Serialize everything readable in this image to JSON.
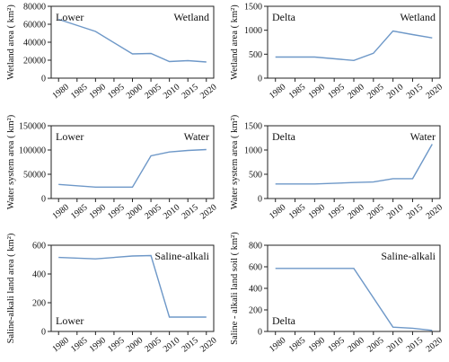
{
  "chart_data": [
    {
      "type": "line",
      "ylabel": "Wetland area ( km²)",
      "region_label": "Lower",
      "category_label": "Wetland",
      "x": [
        1980,
        1990,
        2000,
        2005,
        2010,
        2015,
        2020
      ],
      "y": [
        65500,
        52000,
        27000,
        27500,
        18500,
        19500,
        18000
      ],
      "xticks": [
        1980,
        1985,
        1990,
        1995,
        2000,
        2005,
        2010,
        2015,
        2020
      ],
      "yticks": [
        0,
        20000,
        40000,
        60000,
        80000
      ],
      "ylim": [
        0,
        80000
      ],
      "xlim": [
        1978,
        2022
      ]
    },
    {
      "type": "line",
      "ylabel": "Wetland area ( km²)",
      "region_label": "Delta",
      "category_label": "Wetland",
      "x": [
        1980,
        1990,
        2000,
        2005,
        2010,
        2015,
        2020
      ],
      "y": [
        440,
        440,
        370,
        520,
        985,
        910,
        840
      ],
      "xticks": [
        1980,
        1985,
        1990,
        1995,
        2000,
        2005,
        2010,
        2015,
        2020
      ],
      "yticks": [
        0,
        500,
        1000,
        1500
      ],
      "ylim": [
        0,
        1500
      ],
      "xlim": [
        1978,
        2022
      ]
    },
    {
      "type": "line",
      "ylabel": "Water system area ( km²)",
      "region_label": "Lower",
      "category_label": "Water",
      "x": [
        1980,
        1990,
        2000,
        2005,
        2010,
        2015,
        2020
      ],
      "y": [
        29000,
        23500,
        23500,
        88000,
        96000,
        99000,
        101000
      ],
      "xticks": [
        1980,
        1985,
        1990,
        1995,
        2000,
        2005,
        2010,
        2015,
        2020
      ],
      "yticks": [
        0,
        50000,
        100000,
        150000
      ],
      "ylim": [
        0,
        150000
      ],
      "xlim": [
        1978,
        2022
      ]
    },
    {
      "type": "line",
      "ylabel": "Water system area ( km²)",
      "region_label": "Delta",
      "category_label": "Water",
      "x": [
        1980,
        1990,
        2000,
        2005,
        2010,
        2015,
        2020
      ],
      "y": [
        300,
        300,
        330,
        340,
        410,
        410,
        1120
      ],
      "xticks": [
        1980,
        1985,
        1990,
        1995,
        2000,
        2005,
        2010,
        2015,
        2020
      ],
      "yticks": [
        0,
        500,
        1000,
        1500
      ],
      "ylim": [
        0,
        1500
      ],
      "xlim": [
        1978,
        2022
      ]
    },
    {
      "type": "line",
      "ylabel": "Saline-alkali land area ( km²)",
      "region_label": "Lower",
      "category_label": "Saline-alkali",
      "x": [
        1980,
        1990,
        2000,
        2005,
        2010,
        2015,
        2020
      ],
      "y": [
        515,
        505,
        525,
        528,
        100,
        100,
        100
      ],
      "xticks": [
        1980,
        1985,
        1990,
        1995,
        2000,
        2005,
        2010,
        2015,
        2020
      ],
      "yticks": [
        0,
        200,
        400,
        600
      ],
      "ylim": [
        0,
        600
      ],
      "xlim": [
        1978,
        2022
      ]
    },
    {
      "type": "line",
      "ylabel": "Saline - alkali land soil ( km²)",
      "region_label": "Delta",
      "category_label": "Saline-alkali",
      "x": [
        1980,
        1990,
        2000,
        2010,
        2015,
        2020
      ],
      "y": [
        585,
        585,
        585,
        40,
        30,
        10
      ],
      "xticks": [
        1980,
        1985,
        1990,
        1995,
        2000,
        2005,
        2010,
        2015,
        2020
      ],
      "yticks": [
        0,
        200,
        400,
        600,
        800
      ],
      "ylim": [
        0,
        800
      ],
      "xlim": [
        1978,
        2022
      ]
    }
  ]
}
